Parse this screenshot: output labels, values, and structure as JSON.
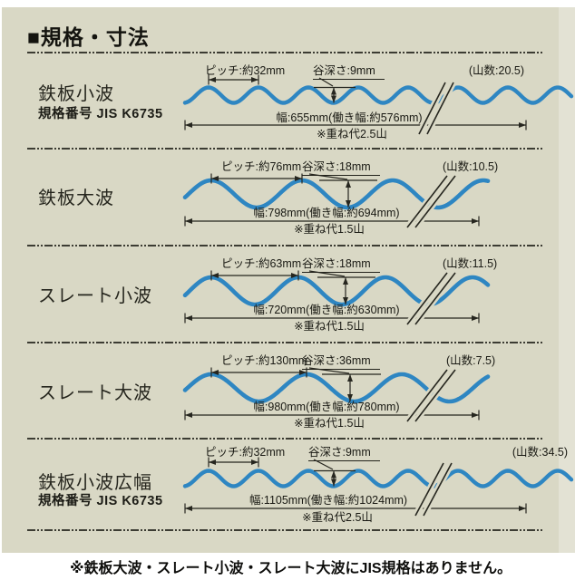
{
  "page": {
    "title": "■規格・寸法",
    "footnote": "※鉄板大波・スレート小波・スレート大波にJIS規格はありません。",
    "colors": {
      "background": "#d9d8c5",
      "wave": "#2e86c2",
      "ink": "#26261f"
    }
  },
  "rows": [
    {
      "name": "鉄板小波",
      "standard": "規格番号 JIS K6735",
      "labels": {
        "pitch": "ピッチ:約32mm",
        "valley_depth": "谷深さ:9mm",
        "crest_count": "(山数:20.5)",
        "width": "幅:655mm(働き幅:約576mm)",
        "overlap": "※重ね代2.5山"
      }
    },
    {
      "name": "鉄板大波",
      "labels": {
        "pitch": "ピッチ:約76mm",
        "valley_depth": "谷深さ:18mm",
        "crest_count": "(山数:10.5)",
        "width": "幅:798mm(働き幅:約694mm)",
        "overlap": "※重ね代1.5山"
      }
    },
    {
      "name": "スレート小波",
      "labels": {
        "pitch": "ピッチ:約63mm",
        "valley_depth": "谷深さ:18mm",
        "crest_count": "(山数:11.5)",
        "width": "幅:720mm(働き幅:約630mm)",
        "overlap": "※重ね代1.5山"
      }
    },
    {
      "name": "スレート大波",
      "labels": {
        "pitch": "ピッチ:約130mm",
        "valley_depth": "谷深さ:36mm",
        "crest_count": "(山数:7.5)",
        "width": "幅:980mm(働き幅:約780mm)",
        "overlap": "※重ね代1.5山"
      }
    },
    {
      "name": "鉄板小波広幅",
      "standard": "規格番号 JIS K6735",
      "labels": {
        "pitch": "ピッチ:約32mm",
        "valley_depth": "谷深さ:9mm",
        "crest_count": "(山数:34.5)",
        "width": "幅:1105mm(働き幅:約1024mm)",
        "overlap": "※重ね代2.5山"
      }
    }
  ]
}
